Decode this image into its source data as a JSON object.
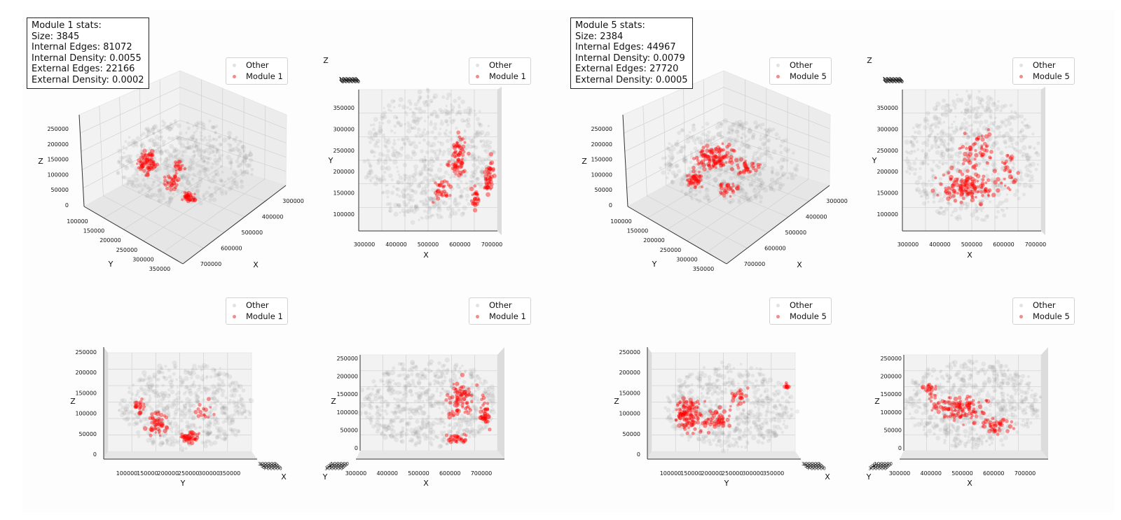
{
  "colors": {
    "other_points": "#808080",
    "module_points": "#ff0000",
    "pane_fill": "#f2f2f2",
    "grid": "#d0d0d0"
  },
  "panels": [
    {
      "module_label": "Module 1",
      "stats": {
        "title": "Module 1 stats:",
        "size": "Size: 3845",
        "internal_edges": "Internal Edges: 81072",
        "internal_density": "Internal Density: 0.0055",
        "external_edges": "External Edges: 22166",
        "external_density": "External Density: 0.0002"
      },
      "legend": {
        "other": "Other",
        "module": "Module 1"
      }
    },
    {
      "module_label": "Module 5",
      "stats": {
        "title": "Module 5 stats:",
        "size": "Size: 2384",
        "internal_edges": "Internal Edges: 44967",
        "internal_density": "Internal Density: 0.0079",
        "external_edges": "External Edges: 27720",
        "external_density": "External Density: 0.0005"
      },
      "legend": {
        "other": "Other",
        "module": "Module 5"
      }
    }
  ],
  "chart_data": [
    {
      "type": "scatter",
      "projection": "3d-perspective",
      "series": [
        {
          "name": "Other"
        },
        {
          "name": "Module 1"
        }
      ],
      "xlabel": "X",
      "ylabel": "Y",
      "zlabel": "Z",
      "xticks": [
        "300000",
        "400000",
        "500000",
        "600000",
        "700000"
      ],
      "yticks": [
        "100000",
        "150000",
        "200000",
        "250000",
        "300000",
        "350000"
      ],
      "zticks": [
        "0",
        "50000",
        "100000",
        "150000",
        "200000",
        "250000"
      ],
      "xlim": [
        280000,
        740000
      ],
      "ylim": [
        70000,
        380000
      ],
      "zlim": [
        0,
        260000
      ]
    },
    {
      "type": "scatter",
      "projection": "top-xy",
      "series": [
        {
          "name": "Other"
        },
        {
          "name": "Module 1"
        }
      ],
      "xlabel": "X",
      "ylabel": "Y",
      "zlabel": "Z",
      "xticks": [
        "300000",
        "400000",
        "500000",
        "600000",
        "700000"
      ],
      "yticks": [
        "100000",
        "150000",
        "200000",
        "250000",
        "300000",
        "350000"
      ],
      "xlim": [
        280000,
        740000
      ],
      "ylim": [
        70000,
        380000
      ]
    },
    {
      "type": "scatter",
      "projection": "side-yz",
      "series": [
        {
          "name": "Other"
        },
        {
          "name": "Module 1"
        }
      ],
      "xlabel": "Y",
      "ylabel": "Z",
      "depthlabel": "X",
      "xticks": [
        "100000",
        "150000",
        "200000",
        "250000",
        "300000",
        "350000"
      ],
      "yticks": [
        "0",
        "50000",
        "100000",
        "150000",
        "200000",
        "250000"
      ],
      "xlim": [
        70000,
        380000
      ],
      "ylim": [
        0,
        260000
      ]
    },
    {
      "type": "scatter",
      "projection": "front-xz",
      "series": [
        {
          "name": "Other"
        },
        {
          "name": "Module 1"
        }
      ],
      "xlabel": "X",
      "ylabel": "Z",
      "depthlabel": "Y",
      "xticks": [
        "300000",
        "400000",
        "500000",
        "600000",
        "700000"
      ],
      "yticks": [
        "0",
        "50000",
        "100000",
        "150000",
        "200000",
        "250000"
      ],
      "xlim": [
        280000,
        740000
      ],
      "ylim": [
        0,
        260000
      ]
    },
    {
      "type": "scatter",
      "projection": "3d-perspective",
      "series": [
        {
          "name": "Other"
        },
        {
          "name": "Module 5"
        }
      ],
      "xlabel": "X",
      "ylabel": "Y",
      "zlabel": "Z",
      "xticks": [
        "300000",
        "400000",
        "500000",
        "600000",
        "700000"
      ],
      "yticks": [
        "100000",
        "150000",
        "200000",
        "250000",
        "300000",
        "350000"
      ],
      "zticks": [
        "0",
        "50000",
        "100000",
        "150000",
        "200000",
        "250000"
      ],
      "xlim": [
        280000,
        740000
      ],
      "ylim": [
        70000,
        380000
      ],
      "zlim": [
        0,
        260000
      ]
    },
    {
      "type": "scatter",
      "projection": "top-xy",
      "series": [
        {
          "name": "Other"
        },
        {
          "name": "Module 5"
        }
      ],
      "xlabel": "X",
      "ylabel": "Y",
      "zlabel": "Z",
      "xticks": [
        "300000",
        "400000",
        "500000",
        "600000",
        "700000"
      ],
      "yticks": [
        "100000",
        "150000",
        "200000",
        "250000",
        "300000",
        "350000"
      ],
      "xlim": [
        280000,
        740000
      ],
      "ylim": [
        70000,
        380000
      ]
    },
    {
      "type": "scatter",
      "projection": "side-yz",
      "series": [
        {
          "name": "Other"
        },
        {
          "name": "Module 5"
        }
      ],
      "xlabel": "Y",
      "ylabel": "Z",
      "depthlabel": "X",
      "xticks": [
        "100000",
        "150000",
        "200000",
        "250000",
        "300000",
        "350000"
      ],
      "yticks": [
        "0",
        "50000",
        "100000",
        "150000",
        "200000",
        "250000"
      ],
      "xlim": [
        70000,
        380000
      ],
      "ylim": [
        0,
        260000
      ]
    },
    {
      "type": "scatter",
      "projection": "front-xz",
      "series": [
        {
          "name": "Other"
        },
        {
          "name": "Module 5"
        }
      ],
      "xlabel": "X",
      "ylabel": "Z",
      "depthlabel": "Y",
      "xticks": [
        "300000",
        "400000",
        "500000",
        "600000",
        "700000"
      ],
      "yticks": [
        "0",
        "50000",
        "100000",
        "150000",
        "200000",
        "250000"
      ],
      "xlim": [
        280000,
        740000
      ],
      "ylim": [
        0,
        260000
      ]
    }
  ]
}
